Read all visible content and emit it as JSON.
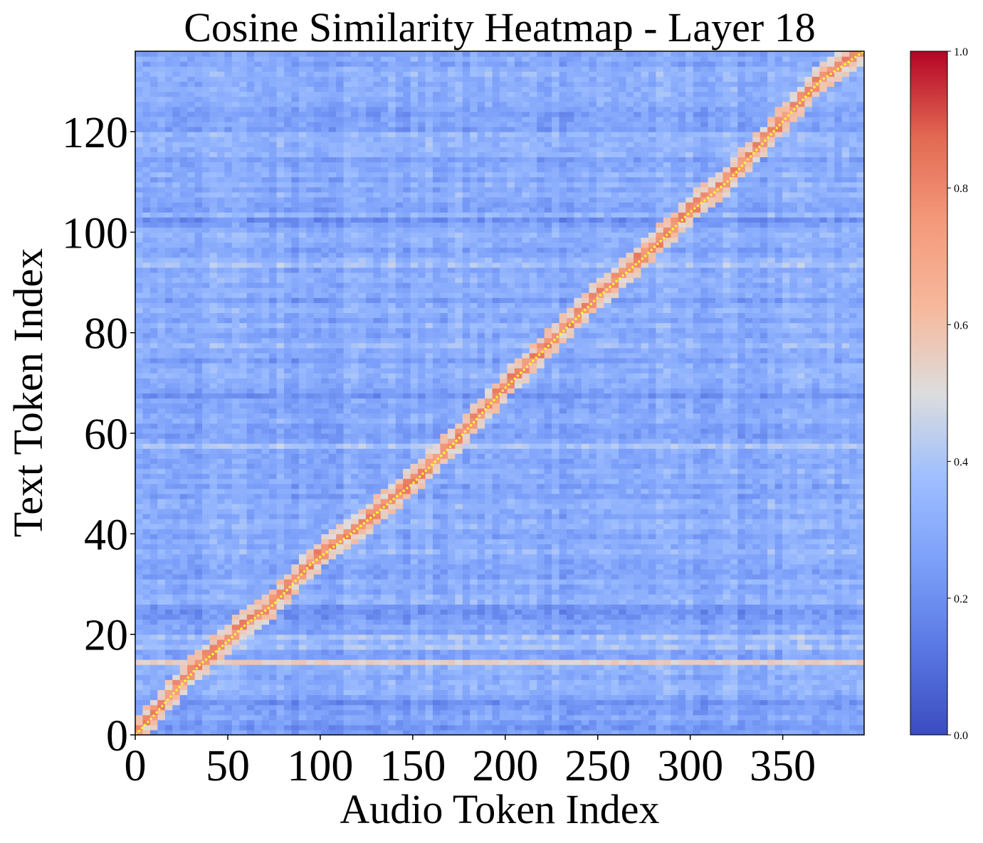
{
  "chart_data": {
    "type": "heatmap",
    "title": "Cosine Similarity Heatmap - Layer 18",
    "xlabel": "Audio Token Index",
    "ylabel": "Text Token Index",
    "x_range": [
      0,
      394
    ],
    "y_range": [
      0,
      136
    ],
    "x_ticks": [
      "0",
      "50",
      "100",
      "150",
      "200",
      "250",
      "300",
      "350"
    ],
    "y_ticks": [
      "0",
      "20",
      "40",
      "60",
      "80",
      "100",
      "120"
    ],
    "colormap": "coolwarm",
    "colorbar": {
      "range": [
        0.0,
        1.0
      ],
      "ticks": [
        "0.0",
        "0.2",
        "0.4",
        "0.6",
        "0.8",
        "1.0"
      ]
    },
    "background_similarity": 0.3,
    "highlighted_row": {
      "y": 14,
      "similarity": 0.55
    },
    "diagonal_alignment_path": {
      "color": "#ffff33",
      "points": [
        [
          0,
          0
        ],
        [
          8,
          3
        ],
        [
          20,
          8
        ],
        [
          35,
          14
        ],
        [
          45,
          17
        ],
        [
          60,
          22
        ],
        [
          75,
          26
        ],
        [
          95,
          34
        ],
        [
          120,
          41
        ],
        [
          150,
          50
        ],
        [
          175,
          59
        ],
        [
          200,
          69
        ],
        [
          225,
          78
        ],
        [
          250,
          87
        ],
        [
          275,
          95
        ],
        [
          300,
          104
        ],
        [
          320,
          110
        ],
        [
          345,
          120
        ],
        [
          370,
          130
        ],
        [
          394,
          136
        ]
      ]
    },
    "grid": false
  }
}
